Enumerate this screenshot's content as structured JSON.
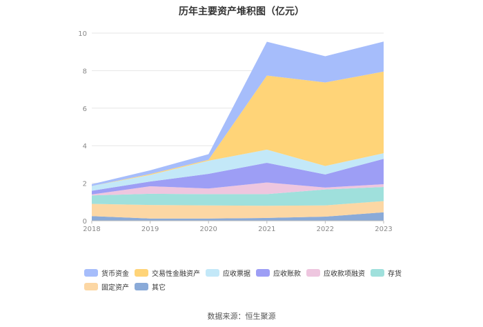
{
  "chart_data": {
    "type": "area",
    "stacked": true,
    "title": "历年主要资产堆积图（亿元）",
    "xlabel": "",
    "ylabel": "",
    "x": [
      "2018",
      "2019",
      "2020",
      "2021",
      "2022",
      "2023"
    ],
    "ylim": [
      0,
      10
    ],
    "yticks": [
      0,
      2,
      4,
      6,
      8,
      10
    ],
    "grid": true,
    "legend_position": "bottom",
    "series": [
      {
        "name": "其它",
        "color": "#8aaad8",
        "values": [
          0.25,
          0.12,
          0.12,
          0.15,
          0.22,
          0.45
        ]
      },
      {
        "name": "固定资产",
        "color": "#fcd7a4",
        "values": [
          0.65,
          0.72,
          0.7,
          0.65,
          0.6,
          0.6
        ]
      },
      {
        "name": "存货",
        "color": "#9fe0dc",
        "values": [
          0.45,
          0.6,
          0.6,
          0.62,
          0.85,
          0.75
        ]
      },
      {
        "name": "应收款项融资",
        "color": "#eec6df",
        "values": [
          0.05,
          0.4,
          0.3,
          0.62,
          0.1,
          0.15
        ]
      },
      {
        "name": "应收账款",
        "color": "#9d9ef5",
        "values": [
          0.2,
          0.25,
          0.78,
          1.05,
          0.7,
          1.35
        ]
      },
      {
        "name": "应收票据",
        "color": "#c3e8f8",
        "values": [
          0.25,
          0.35,
          0.7,
          0.7,
          0.45,
          0.3
        ]
      },
      {
        "name": "交易性金融资产",
        "color": "#ffd478",
        "values": [
          0.0,
          0.05,
          0.05,
          3.95,
          4.45,
          4.35
        ]
      },
      {
        "name": "货币资金",
        "color": "#a6bdfb",
        "values": [
          0.1,
          0.2,
          0.3,
          1.8,
          1.4,
          1.6
        ]
      }
    ],
    "legend_order": [
      "货币资金",
      "交易性金融资产",
      "应收票据",
      "应收账款",
      "应收款项融资",
      "存货",
      "固定资产",
      "其它"
    ]
  },
  "source_text": "数据来源：恒生聚源"
}
